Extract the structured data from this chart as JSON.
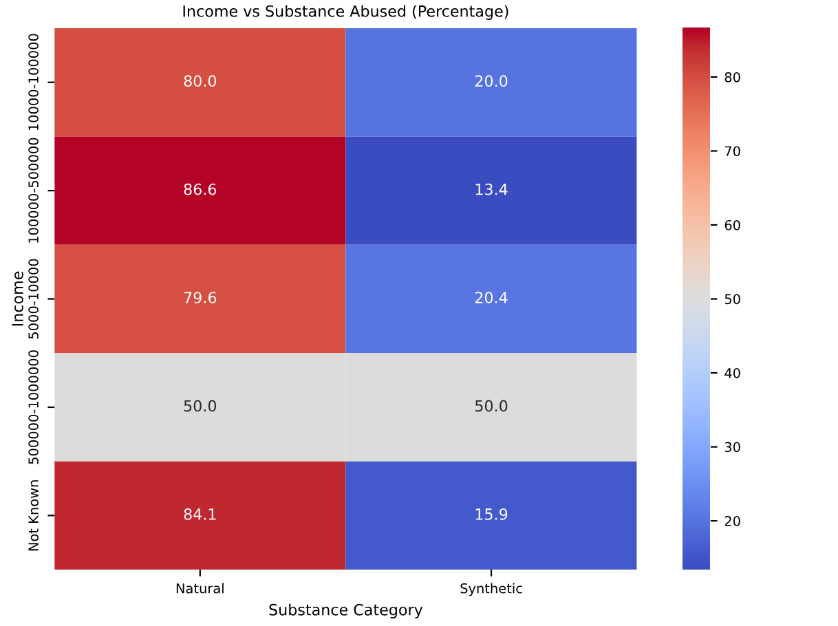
{
  "chart_data": {
    "type": "heatmap",
    "title": "Income vs Substance Abused (Percentage)",
    "xlabel": "Substance Category",
    "ylabel": "Income",
    "categories": [
      "Natural",
      "Synthetic"
    ],
    "y_categories": [
      "10000-100000",
      "100000-500000",
      "5000-10000",
      "500000-1000000",
      "Not Known"
    ],
    "cells": [
      [
        80.0,
        20.0
      ],
      [
        86.6,
        13.4
      ],
      [
        79.6,
        20.4
      ],
      [
        50.0,
        50.0
      ],
      [
        84.1,
        15.9
      ]
    ],
    "cell_labels": [
      [
        "80.0",
        "20.0"
      ],
      [
        "86.6",
        "13.4"
      ],
      [
        "79.6",
        "20.4"
      ],
      [
        "50.0",
        "50.0"
      ],
      [
        "84.1",
        "15.9"
      ]
    ],
    "clim": [
      13.4,
      86.6
    ],
    "cticks": [
      20,
      30,
      40,
      50,
      60,
      70,
      80
    ]
  }
}
